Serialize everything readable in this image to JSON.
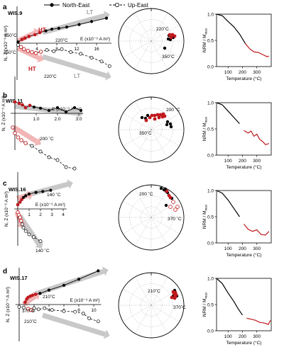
{
  "legend": {
    "ne_label": "North-East",
    "ue_label": "Up-East"
  },
  "colors": {
    "ht": "#c0191e",
    "lt_arrow": "#c8c8c8",
    "ht_arrow": "#f2b5b5"
  },
  "axis_labels": {
    "nz_ylabel": "N, Z (x10⁻⁹ A m²)",
    "e_xlabel": "E (x10⁻⁹ A m²)",
    "nrm_ylabel": "NRM / M",
    "nrm_ylabel_sub": "max",
    "nrm_xlabel": "Temperature (°C)"
  },
  "chart_data": [
    {
      "type": "scatter",
      "panel": "a",
      "sample": "WIS.9",
      "xticks": [
        "4",
        "8",
        "12",
        "16"
      ],
      "ne_points": [
        [
          0.2,
          0.3
        ],
        [
          1.0,
          0.9
        ],
        [
          1.6,
          1.2
        ],
        [
          2.4,
          1.6
        ],
        [
          3.6,
          2.0
        ],
        [
          4.6,
          2.5
        ],
        [
          5.8,
          2.9
        ],
        [
          7.0,
          3.3
        ],
        [
          8.4,
          3.5
        ],
        [
          10.0,
          3.8
        ],
        [
          12.5,
          4.4
        ],
        [
          15.0,
          5.1
        ],
        [
          18.0,
          5.9
        ]
      ],
      "ne_ht": [
        [
          1.0,
          0.9
        ],
        [
          1.6,
          1.2
        ],
        [
          2.4,
          1.6
        ],
        [
          3.6,
          2.0
        ],
        [
          4.6,
          2.5
        ]
      ],
      "ue_points": [
        [
          0.2,
          -0.4
        ],
        [
          0.8,
          -0.9
        ],
        [
          1.4,
          -1.4
        ],
        [
          2.2,
          -1.8
        ],
        [
          3.0,
          -2.1
        ],
        [
          3.8,
          -2.3
        ],
        [
          4.8,
          -2.0
        ],
        [
          6.0,
          -1.6
        ],
        [
          7.4,
          -1.9
        ],
        [
          9.0,
          -1.4
        ],
        [
          10.8,
          -2.1
        ],
        [
          12.8,
          -2.5
        ],
        [
          15.0,
          -3.4
        ],
        [
          17.0,
          -4.3
        ],
        [
          18.6,
          -5.4
        ]
      ],
      "ue_ht": [
        [
          0.8,
          -0.9
        ],
        [
          1.4,
          -1.4
        ],
        [
          2.2,
          -1.8
        ],
        [
          3.0,
          -2.1
        ],
        [
          3.8,
          -2.3
        ],
        [
          4.8,
          -2.0
        ]
      ],
      "annotations": [
        "350˚C",
        "HT",
        "220˚C",
        "LT",
        "350˚C",
        "HT",
        "220˚C",
        "LT"
      ],
      "stereo_labels": [
        "220˚C",
        "350˚C"
      ],
      "nrm_curve": [
        [
          20,
          1.0
        ],
        [
          60,
          0.97
        ],
        [
          100,
          0.86
        ],
        [
          140,
          0.76
        ],
        [
          180,
          0.62
        ],
        [
          220,
          0.44
        ],
        [
          250,
          0.34
        ],
        [
          280,
          0.28
        ],
        [
          310,
          0.27
        ],
        [
          340,
          0.23
        ],
        [
          370,
          0.19
        ],
        [
          385,
          0.2
        ]
      ],
      "nrm_red_from": 220
    },
    {
      "type": "scatter",
      "panel": "b",
      "sample": "WIS.11",
      "xticks": [
        "1.0",
        "2.0",
        "3.0"
      ],
      "ne_points": [
        [
          0.0,
          0.4
        ],
        [
          0.2,
          0.35
        ],
        [
          0.35,
          0.3
        ],
        [
          0.5,
          0.2
        ],
        [
          0.7,
          0.28
        ],
        [
          0.9,
          0.22
        ],
        [
          1.2,
          0.18
        ],
        [
          1.6,
          0.1
        ],
        [
          2.0,
          0.2
        ],
        [
          2.4,
          0.05
        ],
        [
          2.8,
          0.2
        ],
        [
          3.1,
          0.1
        ]
      ],
      "ne_ht": [
        [
          0.0,
          0.4
        ],
        [
          0.2,
          0.35
        ],
        [
          0.35,
          0.3
        ],
        [
          0.5,
          0.2
        ],
        [
          0.7,
          0.28
        ]
      ],
      "ue_points": [
        [
          -0.1,
          -0.5
        ],
        [
          0.0,
          -0.7
        ],
        [
          0.15,
          -0.85
        ],
        [
          0.3,
          -0.95
        ],
        [
          0.5,
          -1.05
        ],
        [
          0.8,
          -1.15
        ],
        [
          1.2,
          -1.35
        ],
        [
          1.6,
          -1.55
        ],
        [
          2.0,
          -1.65
        ],
        [
          2.4,
          -1.9
        ],
        [
          2.8,
          -1.95
        ]
      ],
      "ue_ht": [
        [
          -0.1,
          -0.5
        ],
        [
          0.0,
          -0.7
        ],
        [
          0.15,
          -0.85
        ],
        [
          0.3,
          -0.95
        ],
        [
          0.5,
          -1.05
        ]
      ],
      "annotations": [
        "200 ˚C"
      ],
      "stereo_labels": [
        "200 ˚C",
        "350˚C"
      ],
      "nrm_curve": [
        [
          20,
          1.0
        ],
        [
          60,
          0.96
        ],
        [
          100,
          0.84
        ],
        [
          140,
          0.72
        ],
        [
          180,
          0.6
        ],
        [
          210,
          0.47
        ],
        [
          240,
          0.42
        ],
        [
          260,
          0.46
        ],
        [
          280,
          0.36
        ],
        [
          300,
          0.4
        ],
        [
          320,
          0.3
        ],
        [
          340,
          0.26
        ],
        [
          360,
          0.2
        ],
        [
          385,
          0.22
        ]
      ],
      "nrm_red_from": 200
    },
    {
      "type": "scatter",
      "panel": "c",
      "sample": "WIS.16",
      "xticks": [
        "1",
        "2",
        "3",
        "4"
      ],
      "ne_points": [
        [
          0.0,
          0.5
        ],
        [
          0.2,
          0.8
        ],
        [
          0.35,
          1.1
        ],
        [
          0.5,
          1.35
        ],
        [
          0.7,
          1.55
        ],
        [
          1.0,
          1.75
        ],
        [
          1.6,
          1.95
        ],
        [
          2.2,
          2.05
        ],
        [
          2.9,
          2.2
        ]
      ],
      "ne_ht": [
        [
          0.0,
          0.5
        ],
        [
          0.2,
          0.8
        ],
        [
          0.35,
          1.1
        ]
      ],
      "ue_points": [
        [
          0.0,
          -0.4
        ],
        [
          0.1,
          -0.7
        ],
        [
          0.2,
          -1.0
        ],
        [
          0.3,
          -1.4
        ],
        [
          0.4,
          -1.8
        ],
        [
          0.5,
          -2.2
        ],
        [
          0.7,
          -2.6
        ],
        [
          1.0,
          -3.0
        ],
        [
          1.4,
          -3.3
        ],
        [
          2.0,
          -3.8
        ]
      ],
      "ue_ht": [
        [
          0.0,
          -0.4
        ],
        [
          0.1,
          -0.7
        ],
        [
          0.2,
          -1.0
        ],
        [
          0.3,
          -1.4
        ]
      ],
      "annotations": [
        "140 ˚C",
        "140 ˚C"
      ],
      "stereo_labels": [
        "200 ˚C",
        "370 ˚C"
      ],
      "nrm_curve": [
        [
          20,
          1.0
        ],
        [
          60,
          0.95
        ],
        [
          100,
          0.82
        ],
        [
          140,
          0.66
        ],
        [
          180,
          0.5
        ],
        [
          210,
          0.36
        ],
        [
          240,
          0.26
        ],
        [
          270,
          0.22
        ],
        [
          300,
          0.25
        ],
        [
          330,
          0.16
        ],
        [
          360,
          0.15
        ],
        [
          385,
          0.22
        ]
      ],
      "nrm_red_from": 200
    },
    {
      "type": "scatter",
      "panel": "d",
      "sample": "WIS.17",
      "xticks": [
        "2",
        "4",
        "6",
        "8",
        "10"
      ],
      "ne_points": [
        [
          0.8,
          0.4
        ],
        [
          1.0,
          0.9
        ],
        [
          1.2,
          1.2
        ],
        [
          1.5,
          1.4
        ],
        [
          1.8,
          1.55
        ],
        [
          2.2,
          1.7
        ],
        [
          2.8,
          1.85
        ],
        [
          4.0,
          2.4
        ],
        [
          6.0,
          3.2
        ],
        [
          8.0,
          4.2
        ],
        [
          10.6,
          5.6
        ]
      ],
      "ne_ht": [
        [
          0.8,
          0.4
        ],
        [
          1.0,
          0.9
        ],
        [
          1.2,
          1.2
        ],
        [
          1.5,
          1.4
        ],
        [
          1.8,
          1.55
        ],
        [
          2.2,
          1.7
        ]
      ],
      "ue_points": [
        [
          0.0,
          -0.4
        ],
        [
          0.6,
          -0.5
        ],
        [
          1.2,
          -0.7
        ],
        [
          1.6,
          -0.9
        ],
        [
          2.0,
          -0.6
        ],
        [
          2.6,
          -0.8
        ],
        [
          3.4,
          -0.6
        ],
        [
          4.4,
          -0.9
        ],
        [
          6.0,
          -1.1
        ],
        [
          7.5,
          -1.2
        ],
        [
          8.6,
          -1.5
        ],
        [
          9.4,
          -2.3
        ],
        [
          10.6,
          -2.8
        ]
      ],
      "ue_ht": [
        [
          1.2,
          -0.7
        ],
        [
          1.6,
          -0.9
        ]
      ],
      "annotations": [
        "210˚C",
        "370˚C",
        "210˚C"
      ],
      "stereo_labels": [
        "210˚C",
        "370˚C"
      ],
      "nrm_curve": [
        [
          20,
          1.0
        ],
        [
          60,
          0.9
        ],
        [
          100,
          0.72
        ],
        [
          140,
          0.56
        ],
        [
          170,
          0.42
        ],
        [
          200,
          0.3
        ],
        [
          230,
          0.24
        ],
        [
          260,
          0.22
        ],
        [
          290,
          0.2
        ],
        [
          320,
          0.16
        ],
        [
          350,
          0.15
        ],
        [
          380,
          0.12
        ],
        [
          395,
          0.2
        ]
      ],
      "nrm_red_from": 210
    }
  ],
  "nrm_axes": {
    "yticks": [
      "0.0",
      "0.5",
      "1.0"
    ],
    "xticks": [
      "100",
      "200",
      "300"
    ]
  }
}
